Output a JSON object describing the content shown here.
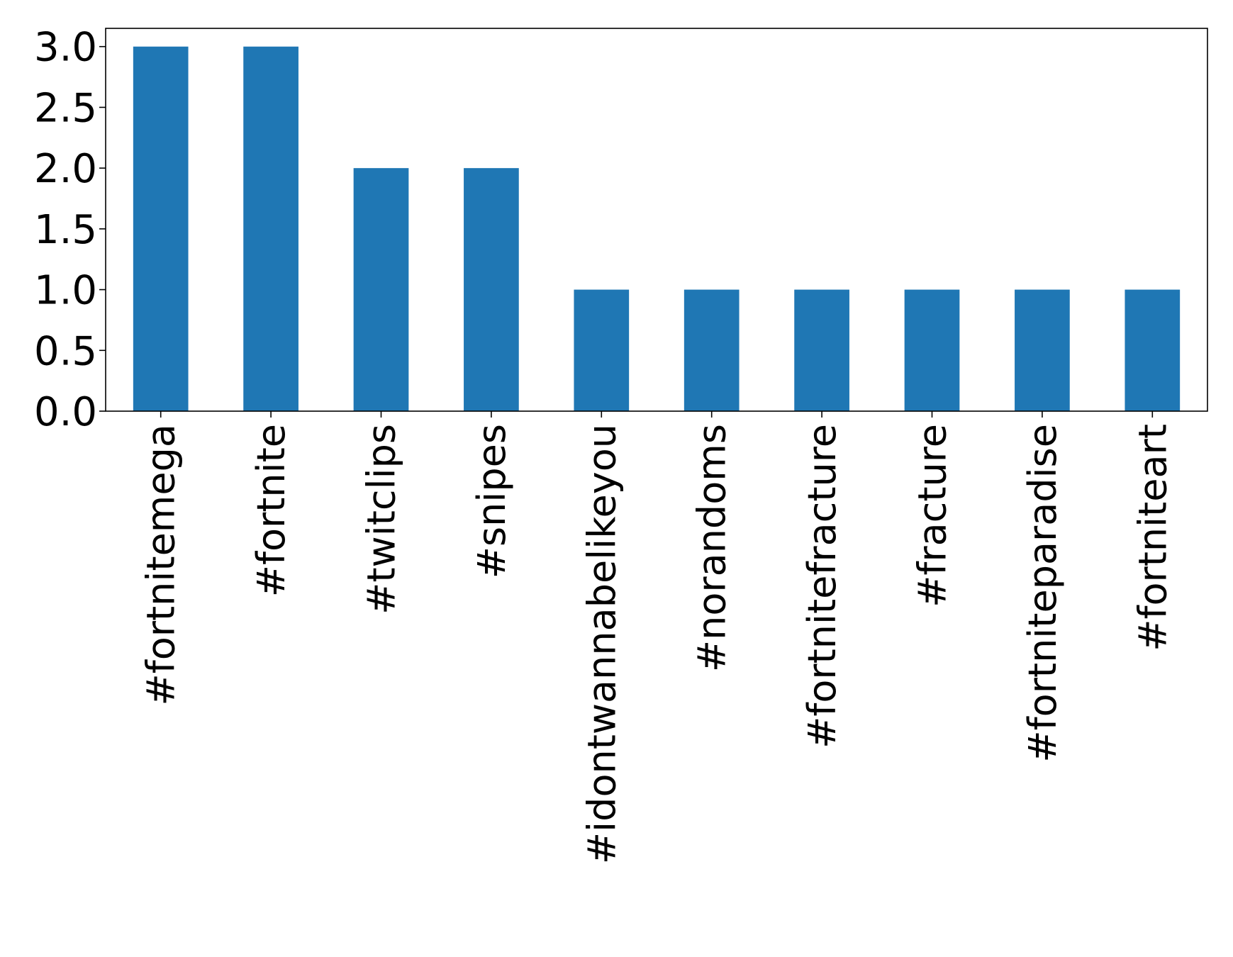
{
  "chart_data": {
    "type": "bar",
    "title": "",
    "xlabel": "",
    "ylabel": "",
    "categories": [
      "#fortnitemega",
      "#fortnite",
      "#twitclips",
      "#snipes",
      "#idontwannabelikeyou",
      "#norandoms",
      "#fortnitefracture",
      "#fracture",
      "#fortniteparadise",
      "#fortniteart"
    ],
    "values": [
      3,
      3,
      2,
      2,
      1,
      1,
      1,
      1,
      1,
      1
    ],
    "ylim": [
      0,
      3.15
    ],
    "yticks": [
      0.0,
      0.5,
      1.0,
      1.5,
      2.0,
      2.5,
      3.0
    ],
    "ytick_labels": [
      "0.0",
      "0.5",
      "1.0",
      "1.5",
      "2.0",
      "2.5",
      "3.0"
    ],
    "grid": false,
    "legend": "none",
    "colors": {
      "bar": "#1f77b4",
      "axes": "#000000",
      "background": "#ffffff"
    }
  }
}
